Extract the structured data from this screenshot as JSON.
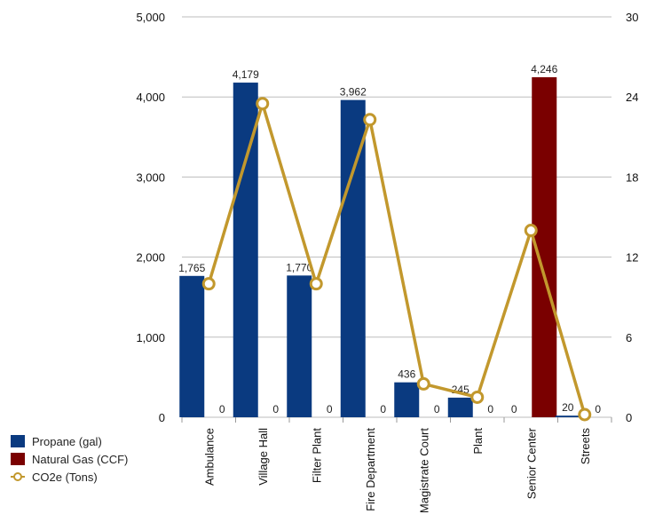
{
  "chart_data": {
    "type": "bar",
    "categories": [
      "Ambulance",
      "Village Hall",
      "Filter Plant",
      "Fire Department",
      "Magistrate Court",
      "Plant",
      "Senior Center",
      "Streets"
    ],
    "series": [
      {
        "name": "Propane (gal)",
        "type": "bar",
        "axis": "left",
        "color": "#0a3a80",
        "values": [
          1765,
          4179,
          1770,
          3962,
          436,
          245,
          0,
          20
        ],
        "labels": [
          "1,765",
          "4,179",
          "1,770",
          "3,962",
          "436",
          "245",
          "0",
          "20"
        ]
      },
      {
        "name": "Natural Gas (CCF)",
        "type": "bar",
        "axis": "left",
        "color": "#7a0000",
        "values": [
          0,
          0,
          0,
          0,
          0,
          0,
          4246,
          0
        ],
        "labels": [
          "0",
          "0",
          "0",
          "0",
          "0",
          "0",
          "4,246",
          "0"
        ]
      },
      {
        "name": "CO2e (Tons)",
        "type": "line",
        "axis": "right",
        "color": "#c2982d",
        "values": [
          10,
          23.5,
          10,
          22.3,
          2.5,
          1.5,
          14,
          0.2
        ]
      }
    ],
    "y_left": {
      "lim": [
        0,
        5000
      ],
      "ticks": [
        0,
        1000,
        2000,
        3000,
        4000,
        5000
      ],
      "tick_labels": [
        "0",
        "1,000",
        "2,000",
        "3,000",
        "4,000",
        "5,000"
      ]
    },
    "y_right": {
      "lim": [
        0,
        30
      ],
      "ticks": [
        0,
        6,
        12,
        18,
        24,
        30
      ],
      "tick_labels": [
        "0",
        "6",
        "12",
        "18",
        "24",
        "30"
      ]
    },
    "grid": true,
    "legend_position": "bottom-left"
  }
}
